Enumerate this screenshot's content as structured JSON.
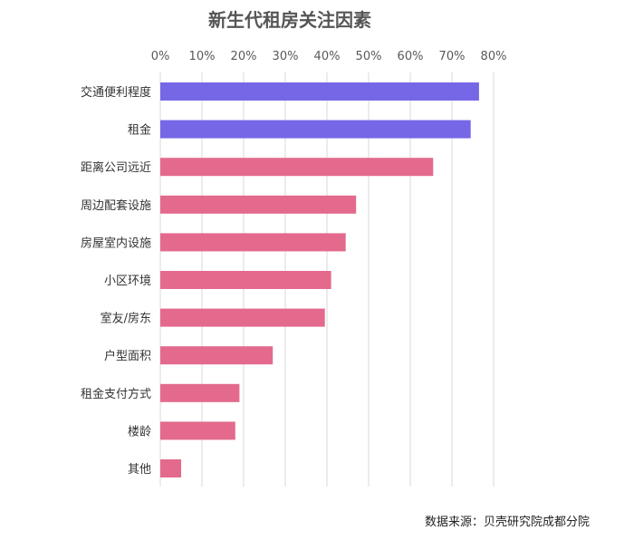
{
  "chart_data": {
    "type": "bar",
    "orientation": "horizontal",
    "title": "新生代租房关注因素",
    "categories": [
      "交通便利程度",
      "租金",
      "距离公司远近",
      "周边配套设施",
      "房屋室内设施",
      "小区环境",
      "室友/房东",
      "户型面积",
      "租金支付方式",
      "楼龄",
      "其他"
    ],
    "values": [
      76.5,
      74.5,
      65.5,
      47,
      44.5,
      41,
      39.5,
      27,
      19,
      18,
      5
    ],
    "unit": "%",
    "xlim": [
      0,
      80
    ],
    "xticks": [
      "0%",
      "10%",
      "20%",
      "30%",
      "40%",
      "50%",
      "60%",
      "70%",
      "80%"
    ],
    "xaxis_position": "top",
    "grid": true,
    "colors": {
      "highlight": "#7567e6",
      "default": "#e36a8c",
      "grid": "#d9d9d9"
    },
    "highlight_categories": [
      "交通便利程度",
      "租金"
    ]
  },
  "source": "数据来源：贝壳研究院成都分院"
}
